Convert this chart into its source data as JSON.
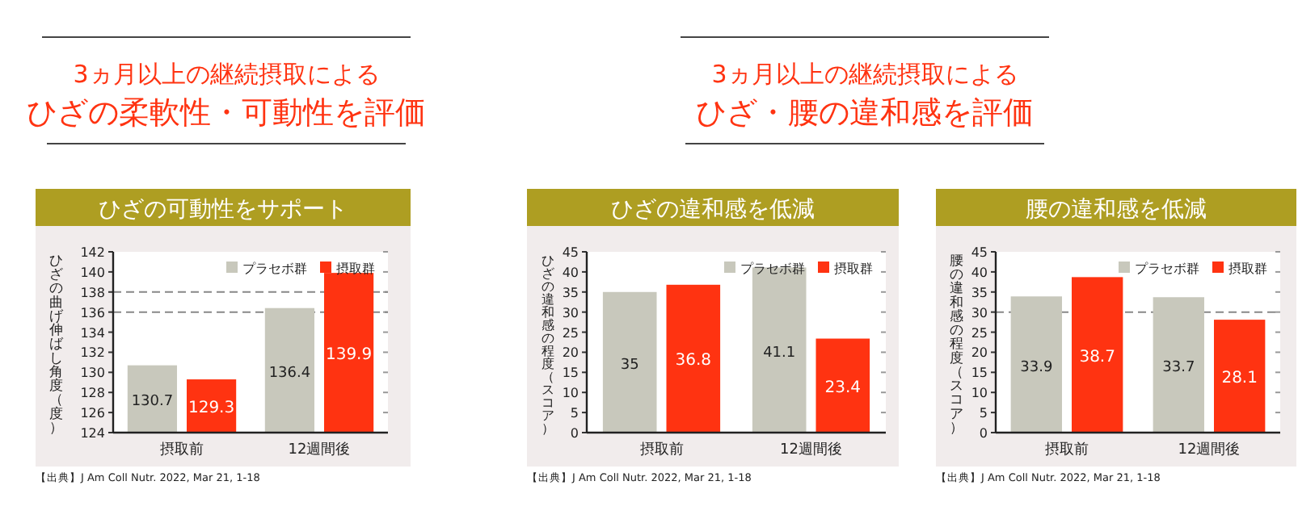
{
  "chart_data": [
    {
      "type": "other",
      "title": "3ヵ月以上の継続摂取による",
      "subtitle": "ひざの柔軟性・可動性を評価"
    },
    {
      "type": "other",
      "title": "3ヵ月以上の継続摂取による",
      "subtitle": "ひざ・腰の違和感を評価"
    },
    {
      "type": "bar",
      "title": "ひざの可動性をサポート",
      "ylabel": "ひざの曲げ伸ばし角度（度）",
      "categories": [
        "摂取前",
        "12週間後"
      ],
      "series": [
        {
          "name": "プラセボ群",
          "color": "#c8c8bc",
          "values": [
            130.7,
            136.4
          ]
        },
        {
          "name": "摂取群",
          "color": "#ff3311",
          "values": [
            129.3,
            139.9
          ]
        }
      ],
      "ylim": [
        124,
        142
      ],
      "yticks": [
        124,
        126,
        128,
        130,
        132,
        134,
        136,
        138,
        140,
        142
      ],
      "grid": false,
      "legend": "top right",
      "data_labels": true,
      "ref_lines": [
        {
          "axis": "y",
          "value": 138,
          "color": "#888888",
          "line_style": "dashed"
        },
        {
          "axis": "y",
          "value": 136,
          "color": "#888888",
          "line_style": "dashed"
        }
      ],
      "annotations": [
        "【出典】J Am Coll Nutr. 2022, Mar 21, 1-18"
      ]
    },
    {
      "type": "bar",
      "title": "ひざの違和感を低減",
      "ylabel": "ひざの違和感の程度（スコア）",
      "categories": [
        "摂取前",
        "12週間後"
      ],
      "series": [
        {
          "name": "プラセボ群",
          "color": "#c8c8bc",
          "values": [
            35,
            41.1
          ]
        },
        {
          "name": "摂取群",
          "color": "#ff3311",
          "values": [
            36.8,
            23.4
          ]
        }
      ],
      "ylim": [
        0,
        45
      ],
      "yticks": [
        0,
        5,
        10,
        15,
        20,
        25,
        30,
        35,
        40,
        45
      ],
      "grid": false,
      "legend": "top right",
      "data_labels": true,
      "annotations": [
        "【出典】J Am Coll Nutr. 2022, Mar 21, 1-18"
      ]
    },
    {
      "type": "bar",
      "title": "腰の違和感を低減",
      "ylabel": "腰の違和感の程度（スコア）",
      "categories": [
        "摂取前",
        "12週間後"
      ],
      "series": [
        {
          "name": "プラセボ群",
          "color": "#c8c8bc",
          "values": [
            33.9,
            33.7
          ]
        },
        {
          "name": "摂取群",
          "color": "#ff3311",
          "values": [
            38.7,
            28.1
          ]
        }
      ],
      "ylim": [
        0,
        45
      ],
      "yticks": [
        0,
        5,
        10,
        15,
        20,
        25,
        30,
        35,
        40,
        45
      ],
      "grid": false,
      "legend": "top right",
      "data_labels": true,
      "ref_lines": [
        {
          "axis": "y",
          "value": 30,
          "color": "#888888",
          "line_style": "dashed"
        }
      ],
      "annotations": [
        "【出典】J Am Coll Nutr. 2022, Mar 21, 1-18"
      ]
    }
  ]
}
